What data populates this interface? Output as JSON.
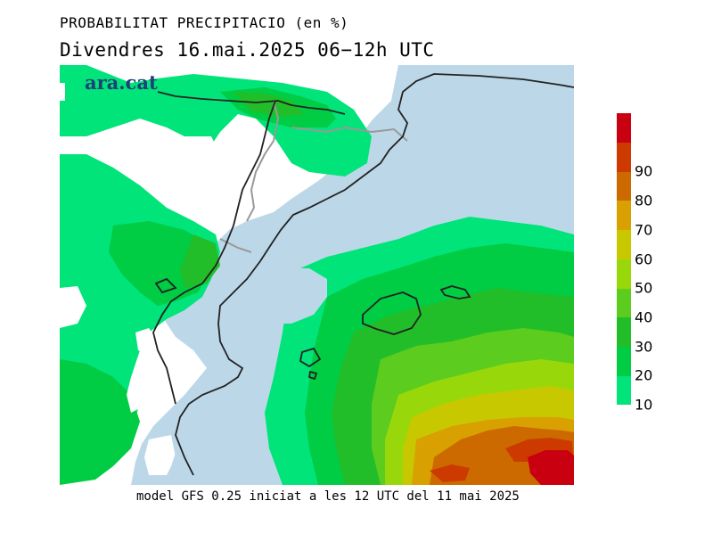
{
  "header": {
    "title": "PROBABILITAT PRECIPITACIO (en %)",
    "subtitle": "Divendres  16.mai.2025 06−12h UTC"
  },
  "logo": {
    "text": "ara.cat",
    "color": "#1f3f7a"
  },
  "footer": {
    "text": "model GFS 0.25 iniciat a les 12 UTC del 11 mai 2025"
  },
  "legend": {
    "levels": [
      {
        "label": "10",
        "color": "#00e47a"
      },
      {
        "label": "20",
        "color": "#00cc44"
      },
      {
        "label": "30",
        "color": "#22be2a"
      },
      {
        "label": "40",
        "color": "#5ccc1e"
      },
      {
        "label": "50",
        "color": "#98d80a"
      },
      {
        "label": "60",
        "color": "#c8c800"
      },
      {
        "label": "70",
        "color": "#d8a000"
      },
      {
        "label": "80",
        "color": "#cc6a00"
      },
      {
        "label": "90",
        "color": "#cc3a00"
      },
      {
        "label": "",
        "color": "#c80010"
      }
    ]
  },
  "colors": {
    "sea": "#bcd8e8",
    "land": "#ffffff",
    "coast": "#222222",
    "borders": "#999999"
  }
}
